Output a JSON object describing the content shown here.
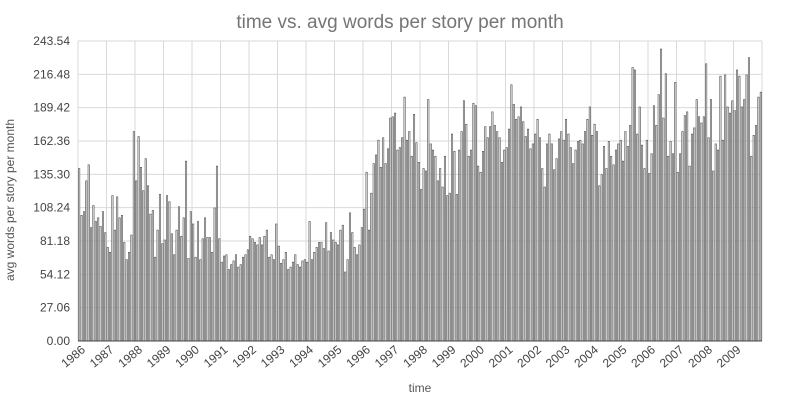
{
  "chart_data": {
    "type": "bar",
    "title": "time vs. avg words per story per month",
    "xlabel": "time",
    "ylabel": "avg words per story per month",
    "ylim": [
      0,
      243.54
    ],
    "yticks": [
      "0.00",
      "27.06",
      "54.12",
      "81.18",
      "108.24",
      "135.30",
      "162.36",
      "189.42",
      "216.48",
      "243.54"
    ],
    "xticks": [
      "1986",
      "1987",
      "1988",
      "1989",
      "1990",
      "1991",
      "1992",
      "1993",
      "1994",
      "1995",
      "1996",
      "1997",
      "1998",
      "1999",
      "2000",
      "2001",
      "2002",
      "2003",
      "2004",
      "2005",
      "2006",
      "2007",
      "2008",
      "2009"
    ],
    "grid": true,
    "legend": "none",
    "bar_fill": "#ffffff",
    "bar_stroke": "#444444",
    "series": [
      {
        "values": [
          140,
          102,
          105,
          130,
          143,
          92,
          110,
          97,
          100,
          93,
          105,
          88,
          76,
          72,
          118,
          90,
          117,
          100,
          102,
          80,
          66,
          72,
          86,
          170,
          130,
          166,
          141,
          122,
          148,
          126,
          103,
          106,
          68,
          90,
          119,
          79,
          82,
          118,
          113,
          87,
          70,
          90,
          109,
          85,
          100,
          146,
          67,
          105,
          95,
          68,
          97,
          66,
          83,
          100,
          84,
          84,
          72,
          108,
          142,
          83,
          64,
          69,
          70,
          58,
          62,
          65,
          70,
          60,
          62,
          68,
          70,
          74,
          85,
          83,
          80,
          78,
          84,
          78,
          85,
          90,
          68,
          70,
          66,
          95,
          77,
          63,
          66,
          72,
          58,
          60,
          64,
          70,
          62,
          60,
          65,
          66,
          64,
          97,
          66,
          72,
          76,
          80,
          80,
          75,
          96,
          73,
          88,
          82,
          80,
          78,
          90,
          94,
          56,
          66,
          104,
          88,
          76,
          70,
          78,
          92,
          107,
          137,
          90,
          120,
          144,
          151,
          163,
          141,
          165,
          144,
          156,
          181,
          182,
          185,
          155,
          157,
          165,
          198,
          163,
          170,
          150,
          184,
          161,
          145,
          123,
          140,
          138,
          196,
          160,
          155,
          150,
          130,
          140,
          125,
          150,
          118,
          120,
          168,
          154,
          119,
          155,
          170,
          195,
          176,
          150,
          155,
          193,
          191,
          142,
          137,
          154,
          174,
          165,
          174,
          186,
          175,
          170,
          165,
          145,
          155,
          157,
          172,
          208,
          192,
          180,
          182,
          190,
          178,
          166,
          172,
          156,
          160,
          168,
          180,
          165,
          140,
          125,
          160,
          168,
          160,
          139,
          148,
          164,
          170,
          163,
          180,
          168,
          157,
          144,
          155,
          162,
          163,
          160,
          170,
          180,
          190,
          167,
          176,
          170,
          126,
          135,
          158,
          140,
          162,
          150,
          143,
          155,
          160,
          163,
          146,
          170,
          158,
          175,
          222,
          220,
          168,
          190,
          159,
          140,
          163,
          136,
          152,
          191,
          175,
          200,
          237,
          181,
          217,
          150,
          162,
          152,
          210,
          137,
          152,
          170,
          183,
          186,
          142,
          168,
          173,
          196,
          182,
          177,
          182,
          225,
          165,
          196,
          138,
          160,
          155,
          215,
          163,
          216,
          190,
          185,
          195,
          187,
          220,
          215,
          190,
          196,
          216,
          230,
          150,
          167,
          175,
          198,
          202
        ]
      }
    ]
  }
}
